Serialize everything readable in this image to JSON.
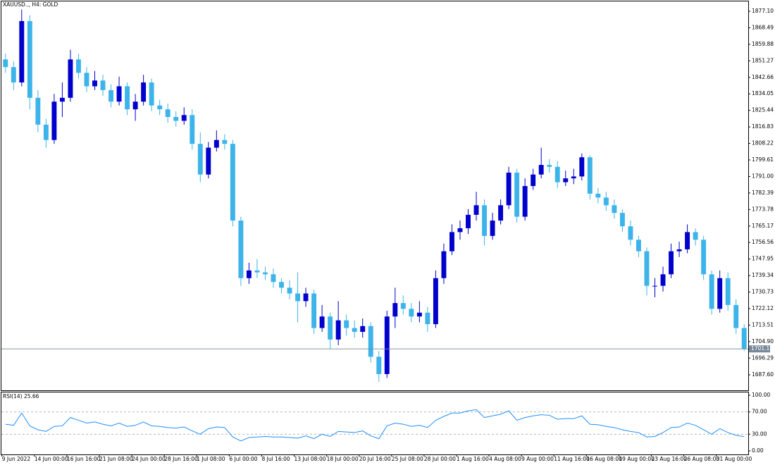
{
  "chart_data": [
    {
      "type": "candlestick",
      "title": "XAUUSD.., H4:  GOLD",
      "categories": [
        "9 Jun 2022",
        null,
        null,
        null,
        "14 Jun 00:00",
        null,
        null,
        null,
        "16 Jun 16:00",
        null,
        null,
        null,
        "21 Jun 08:00",
        null,
        null,
        null,
        "24 Jun 00:00",
        null,
        null,
        null,
        "28 Jun 16:00",
        null,
        null,
        null,
        "1 Jul 08:00",
        null,
        null,
        null,
        "6 Jul 00:00",
        null,
        null,
        null,
        "8 Jul 16:00",
        null,
        null,
        null,
        "13 Jul 08:00",
        null,
        null,
        null,
        "18 Jul 00:00",
        null,
        null,
        null,
        "20 Jul 16:00",
        null,
        null,
        null,
        "25 Jul 08:00",
        null,
        null,
        null,
        "28 Jul 00:00",
        null,
        null,
        null,
        "1 Aug 16:00",
        null,
        null,
        null,
        "4 Aug 08:00",
        null,
        null,
        null,
        "9 Aug 00:00",
        null,
        null,
        null,
        "11 Aug 16:00",
        null,
        null,
        null,
        "16 Aug 08:00",
        null,
        null,
        null,
        "19 Aug 00:00",
        null,
        null,
        null,
        "23 Aug 16:00",
        null,
        null,
        null,
        "26 Aug 08:00",
        null,
        null,
        null,
        "31 Aug 00:00",
        null,
        null,
        null
      ],
      "open": [
        1852,
        1848,
        1840,
        1872,
        1832,
        1818,
        1810,
        1830,
        1832,
        1852,
        1845,
        1838,
        1841,
        1836,
        1830,
        1838,
        1826,
        1830,
        1840,
        1828,
        1826,
        1822,
        1820,
        1823,
        1808,
        1792,
        1806,
        1810,
        1808,
        1768,
        1738,
        1742,
        1741,
        1740,
        1736,
        1733,
        1730,
        1726,
        1730,
        1712,
        1718,
        1706,
        1716,
        1712,
        1710,
        1713,
        1697,
        1688,
        1718,
        1725,
        1722,
        1718,
        1720,
        1714,
        1738,
        1752,
        1762,
        1764,
        1771,
        1776,
        1760,
        1768,
        1776,
        1793,
        1770,
        1786,
        1792,
        1797,
        1796,
        1788,
        1790,
        1791,
        1801,
        1782,
        1780,
        1776,
        1772,
        1765,
        1758,
        1752,
        1734,
        1734,
        1740,
        1752,
        1753,
        1762,
        1758,
        1740,
        1722,
        1738,
        1724,
        1712
      ],
      "high": [
        1855,
        1851,
        1878,
        1875,
        1836,
        1821,
        1834,
        1840,
        1857,
        1855,
        1848,
        1846,
        1844,
        1839,
        1843,
        1840,
        1834,
        1844,
        1842,
        1831,
        1829,
        1825,
        1827,
        1826,
        1814,
        1809,
        1815,
        1813,
        1810,
        1770,
        1746,
        1748,
        1744,
        1743,
        1738,
        1737,
        1741,
        1733,
        1732,
        1724,
        1720,
        1726,
        1719,
        1716,
        1717,
        1715,
        1700,
        1721,
        1733,
        1729,
        1725,
        1726,
        1723,
        1742,
        1756,
        1766,
        1768,
        1774,
        1783,
        1779,
        1772,
        1779,
        1796,
        1795,
        1790,
        1795,
        1806,
        1800,
        1799,
        1794,
        1795,
        1803,
        1802,
        1785,
        1783,
        1779,
        1774,
        1768,
        1760,
        1754,
        1738,
        1744,
        1756,
        1757,
        1766,
        1764,
        1760,
        1742,
        1742,
        1741,
        1727,
        1714
      ],
      "low": [
        1845,
        1836,
        1838,
        1826,
        1814,
        1806,
        1808,
        1822,
        1830,
        1842,
        1835,
        1836,
        1833,
        1827,
        1828,
        1823,
        1820,
        1828,
        1825,
        1823,
        1819,
        1817,
        1818,
        1805,
        1788,
        1790,
        1804,
        1805,
        1765,
        1734,
        1735,
        1738,
        1737,
        1733,
        1730,
        1727,
        1715,
        1723,
        1709,
        1710,
        1701,
        1703,
        1708,
        1707,
        1707,
        1694,
        1684,
        1686,
        1712,
        1719,
        1715,
        1715,
        1710,
        1712,
        1735,
        1750,
        1758,
        1761,
        1768,
        1755,
        1758,
        1766,
        1774,
        1767,
        1768,
        1784,
        1790,
        1793,
        1785,
        1786,
        1787,
        1789,
        1779,
        1777,
        1773,
        1769,
        1762,
        1755,
        1749,
        1729,
        1728,
        1731,
        1738,
        1749,
        1751,
        1755,
        1737,
        1719,
        1720,
        1721,
        1709,
        1700
      ],
      "close": [
        1848,
        1840,
        1872,
        1832,
        1818,
        1810,
        1830,
        1832,
        1852,
        1845,
        1838,
        1841,
        1836,
        1830,
        1838,
        1826,
        1830,
        1840,
        1828,
        1826,
        1822,
        1820,
        1823,
        1808,
        1792,
        1806,
        1810,
        1808,
        1768,
        1738,
        1742,
        1741,
        1740,
        1736,
        1733,
        1730,
        1726,
        1730,
        1712,
        1718,
        1706,
        1716,
        1712,
        1710,
        1713,
        1697,
        1688,
        1718,
        1725,
        1722,
        1718,
        1720,
        1714,
        1738,
        1752,
        1762,
        1764,
        1771,
        1776,
        1760,
        1768,
        1776,
        1793,
        1770,
        1786,
        1792,
        1797,
        1796,
        1788,
        1790,
        1791,
        1801,
        1782,
        1780,
        1776,
        1772,
        1765,
        1758,
        1752,
        1734,
        1734,
        1740,
        1752,
        1753,
        1762,
        1758,
        1740,
        1722,
        1738,
        1724,
        1712,
        1701.11
      ],
      "up_color": "#0000cd",
      "down_color": "#3cb4ea",
      "last_price": 1701.11,
      "ylim": [
        1679.52,
        1882.24
      ],
      "yticks": [
        {
          "value": 1877.1,
          "label": "1877.10"
        },
        1868.49,
        1859.88,
        1851.27,
        1842.66,
        1834.05,
        1825.44,
        1816.83,
        1808.22,
        1799.61,
        {
          "value": 1791,
          "label": "1791.00"
        },
        1782.39,
        1773.78,
        1765.17,
        1756.56,
        1747.95,
        1739.34,
        1730.73,
        1722.12,
        1713.51,
        {
          "value": 1704.9,
          "label": "1704.90"
        },
        1696.29,
        {
          "value": 1687.6,
          "label": "1687.60"
        }
      ]
    },
    {
      "type": "line",
      "title": "RSI(14) 25.66",
      "color": "#1e90ff",
      "values": [
        48,
        46,
        68,
        45,
        38,
        35,
        44,
        45,
        60,
        55,
        50,
        52,
        48,
        45,
        50,
        44,
        46,
        52,
        45,
        44,
        42,
        41,
        43,
        36,
        30,
        40,
        43,
        42,
        25,
        18,
        24,
        25,
        26,
        25,
        25,
        24,
        23,
        27,
        22,
        30,
        26,
        35,
        34,
        33,
        36,
        27,
        22,
        45,
        50,
        48,
        44,
        46,
        42,
        55,
        62,
        68,
        68,
        72,
        74,
        60,
        63,
        66,
        72,
        55,
        60,
        63,
        65,
        64,
        57,
        58,
        58,
        63,
        48,
        47,
        44,
        42,
        38,
        35,
        33,
        25,
        26,
        33,
        42,
        43,
        50,
        46,
        38,
        30,
        40,
        33,
        28,
        25.66
      ],
      "levels": [
        70,
        30
      ],
      "ylim": [
        -6.33,
        105.06
      ],
      "yticks": [
        {
          "value": 100,
          "label": "100.00"
        },
        {
          "value": 70,
          "label": "70.00"
        },
        {
          "value": 30,
          "label": "30.00"
        },
        {
          "value": 0,
          "label": "0.00"
        }
      ]
    }
  ]
}
